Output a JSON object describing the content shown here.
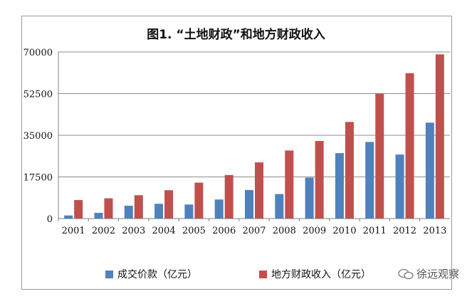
{
  "chart_data": {
    "type": "bar",
    "title": "图1. “土地财政”和地方财政收入",
    "categories": [
      "2001",
      "2002",
      "2003",
      "2004",
      "2005",
      "2006",
      "2007",
      "2008",
      "2009",
      "2010",
      "2011",
      "2012",
      "2013"
    ],
    "series": [
      {
        "name": "成交价款（亿元）",
        "color": "#4f81bd",
        "values": [
          1300,
          2400,
          5400,
          6200,
          5900,
          8000,
          12000,
          10300,
          17200,
          27500,
          32200,
          26900,
          40300
        ]
      },
      {
        "name": "地方财政收入（亿元）",
        "color": "#c0504d",
        "values": [
          7800,
          8500,
          9800,
          11900,
          15100,
          18300,
          23600,
          28600,
          32600,
          40600,
          52500,
          61100,
          69000
        ]
      }
    ],
    "ylim": [
      0,
      70000
    ],
    "yticks": [
      0,
      17500,
      35000,
      52500,
      70000
    ],
    "grid": true,
    "legend_position": "bottom"
  },
  "watermark": {
    "text": "徐远观察"
  }
}
